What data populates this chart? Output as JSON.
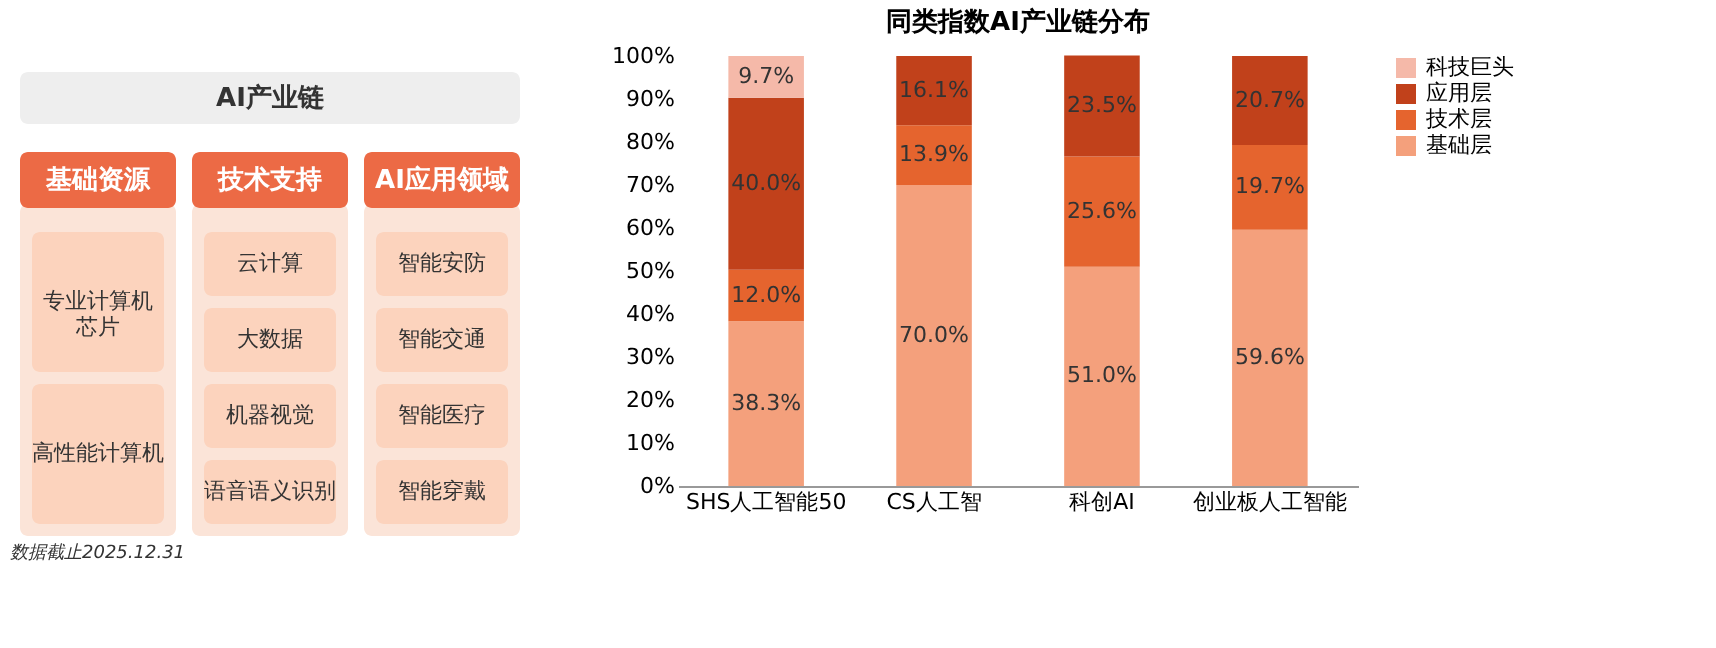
{
  "chart_data": [
    {
      "type": "other",
      "title": "AI产业链",
      "categories": [
        "基础资源",
        "技术支持",
        "AI应用领域"
      ],
      "annotations": [
        "专业计算机芯片",
        "高性能计算机",
        "云计算",
        "大数据",
        "机器视觉",
        "语音语义识别",
        "智能安防",
        "智能交通",
        "智能医疗",
        "智能穿戴"
      ]
    },
    {
      "type": "bar",
      "title": "同类指数AI产业链分布",
      "categories": [
        "SHS人工智能50",
        "CS人工智",
        "科创AI",
        "创业板人工智能"
      ],
      "stacked": true,
      "ylim": [
        0,
        100
      ],
      "yticks": [
        {
          "value": 0,
          "label": "0%"
        },
        {
          "value": 10,
          "label": "10%"
        },
        {
          "value": 20,
          "label": "20%"
        },
        {
          "value": 30,
          "label": "30%"
        },
        {
          "value": 40,
          "label": "40%"
        },
        {
          "value": 50,
          "label": "50%"
        },
        {
          "value": 60,
          "label": "60%"
        },
        {
          "value": 70,
          "label": "70%"
        },
        {
          "value": 80,
          "label": "80%"
        },
        {
          "value": 90,
          "label": "90%"
        },
        {
          "value": 100,
          "label": "100%"
        }
      ],
      "series": [
        {
          "name": "基础层",
          "color": "#f4a07c",
          "values": [
            38.3,
            70.0,
            51.0,
            59.6
          ],
          "value_labels": [
            "38.3%",
            "70.0%",
            "51.0%",
            "59.6%"
          ]
        },
        {
          "name": "技术层",
          "color": "#e5642e",
          "values": [
            12.0,
            13.9,
            25.6,
            19.7
          ],
          "value_labels": [
            "12.0%",
            "13.9%",
            "25.6%",
            "19.7%"
          ]
        },
        {
          "name": "应用层",
          "color": "#c1411b",
          "values": [
            40.0,
            16.1,
            23.5,
            20.7
          ],
          "value_labels": [
            "40.0%",
            "16.1%",
            "23.5%",
            "20.7%"
          ]
        },
        {
          "name": "科技巨头",
          "color": "#f5b9a9",
          "values": [
            9.7,
            null,
            null,
            null
          ],
          "value_labels": [
            "9.7%",
            null,
            null,
            null
          ]
        }
      ],
      "legend": "right",
      "grid": false,
      "annotations": [
        "数据截止2025.12.31"
      ]
    }
  ]
}
